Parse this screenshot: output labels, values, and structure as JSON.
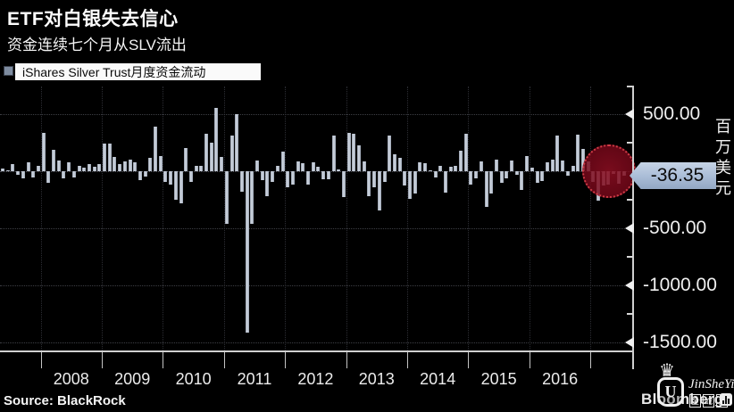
{
  "header": {
    "title": "ETF对白银失去信心",
    "subtitle": "资金连续七个月从SLV流出"
  },
  "legend": {
    "label": "iShares Silver Trust月度资金流动",
    "marker_color": "#7e8ca0"
  },
  "chart_data": {
    "type": "bar",
    "title": "ETF对白银失去信心",
    "subtitle": "资金连续七个月从SLV流出",
    "ylabel": "百万美元",
    "xlabel": "",
    "grid": "dotted",
    "legend_position": "top-left",
    "bar_color": "#b6bfcc",
    "ylim": [
      -1570,
      720
    ],
    "ytick_values": [
      500,
      -500,
      -1000,
      -1500
    ],
    "ytick_labels": [
      "500.00",
      "-500.00",
      "-1000.00",
      "-1500.00"
    ],
    "minor_tick_values": [
      250,
      -250,
      -750,
      -1250
    ],
    "years": [
      "2008",
      "2009",
      "2010",
      "2011",
      "2012",
      "2013",
      "2014",
      "2015",
      "2016"
    ],
    "year_start_indices": [
      8,
      20,
      32,
      44,
      56,
      68,
      80,
      92,
      104,
      116
    ],
    "series": [
      {
        "name": "iShares Silver Trust月度资金流动",
        "values": [
          25,
          10,
          60,
          -30,
          -65,
          80,
          -55,
          45,
          335,
          -100,
          185,
          95,
          -60,
          75,
          -55,
          45,
          30,
          60,
          40,
          60,
          245,
          245,
          125,
          60,
          90,
          105,
          80,
          -80,
          -45,
          120,
          390,
          130,
          -90,
          -115,
          -250,
          -280,
          205,
          -90,
          50,
          45,
          325,
          250,
          555,
          125,
          -460,
          315,
          500,
          -180,
          -1417,
          -460,
          95,
          -75,
          -220,
          -90,
          50,
          170,
          -140,
          -120,
          90,
          70,
          -115,
          75,
          40,
          -70,
          -70,
          315,
          15,
          -230,
          340,
          330,
          225,
          90,
          -220,
          -140,
          -345,
          -90,
          315,
          150,
          120,
          -125,
          -245,
          -195,
          80,
          70,
          0,
          -55,
          45,
          -190,
          40,
          45,
          180,
          330,
          -115,
          -60,
          90,
          -310,
          -195,
          105,
          -105,
          -60,
          95,
          -30,
          -165,
          135,
          30,
          -105,
          -88,
          80,
          99,
          315,
          94,
          -42,
          45,
          323,
          198,
          88,
          -96,
          -258,
          -123,
          -115,
          -25,
          -110,
          -36.35
        ]
      }
    ],
    "last_value": -36.35,
    "last_value_label": "-36.35",
    "annotation": {
      "type": "circle",
      "highlighted_bars": 7,
      "fill_color": "#780a1a",
      "border_color": "#cf3b46"
    }
  },
  "footer": {
    "source": "Source: BlackRock",
    "brand": "Bloomberg"
  },
  "watermark": {
    "name": "JinSheYi",
    "cn": "金蛇易",
    "initial": "U",
    "crown": "♛"
  }
}
